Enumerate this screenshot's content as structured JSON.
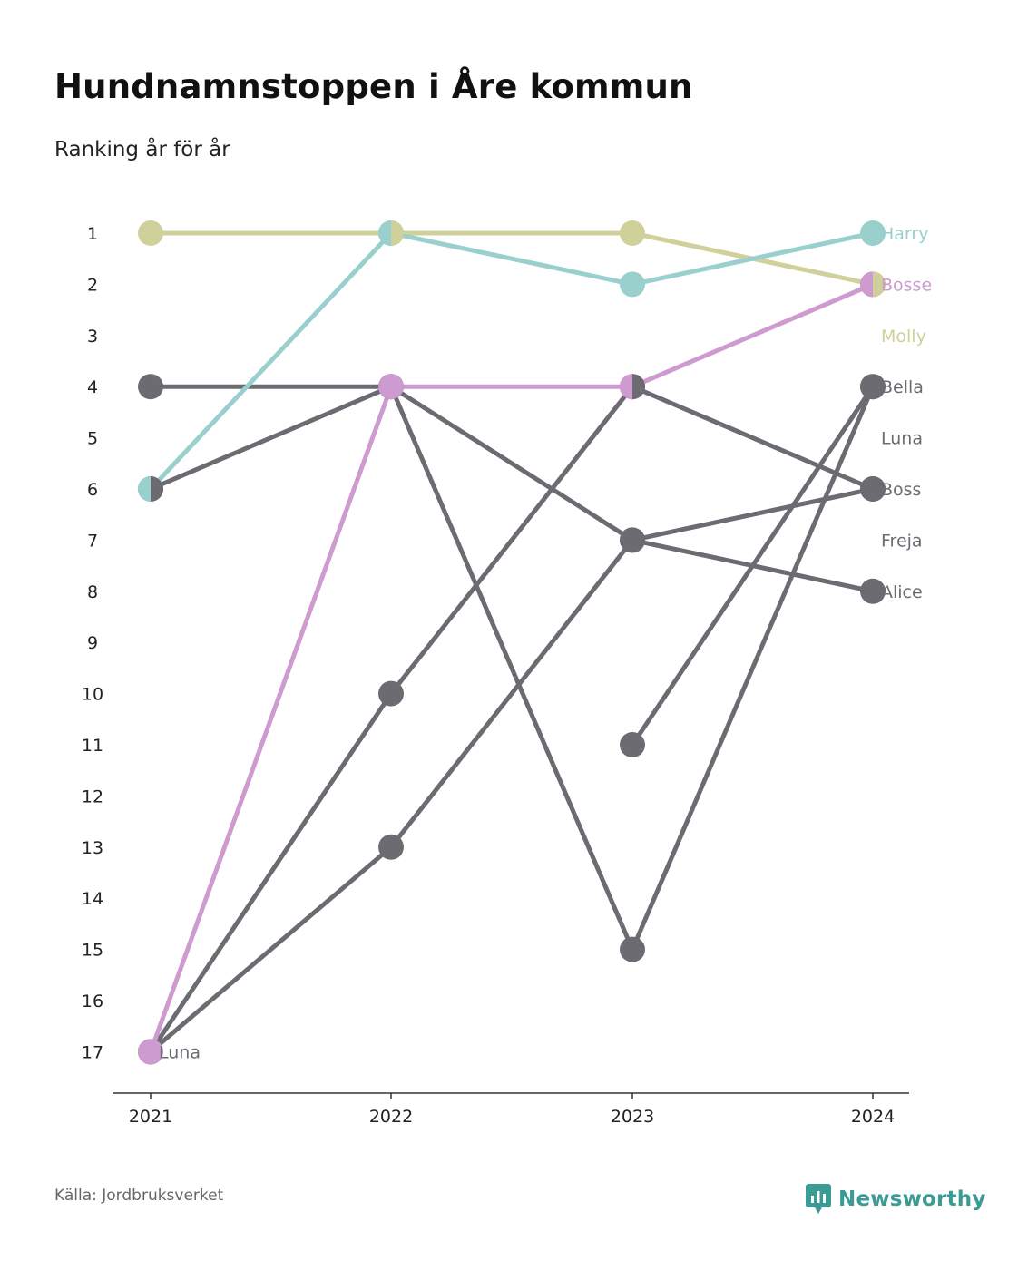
{
  "title": "Hundnamnstoppen i Åre kommun",
  "subtitle": "Ranking år för år",
  "source": "Källa: Jordbruksverket",
  "brand": "Newsworthy",
  "colors": {
    "harry": "#99cfcc",
    "bosse": "#cd9bd0",
    "molly": "#cfd09a",
    "gray": "#6c6b72",
    "axis": "#333333",
    "brand": "#3a9a94"
  },
  "chart_data": {
    "type": "line",
    "variant": "bump",
    "x": [
      2021,
      2022,
      2023,
      2024
    ],
    "y_ticks": [
      1,
      2,
      3,
      4,
      5,
      6,
      7,
      8,
      9,
      10,
      11,
      12,
      13,
      14,
      15,
      16,
      17
    ],
    "y_reversed": true,
    "ylim": [
      1,
      17
    ],
    "grid": false,
    "legend": "none",
    "series": [
      {
        "name": "Molly",
        "color": "#cfd09a",
        "values": [
          1,
          1,
          1,
          2
        ]
      },
      {
        "name": "Harry",
        "color": "#99cfcc",
        "values": [
          6,
          1,
          2,
          1
        ]
      },
      {
        "name": "Bosse",
        "color": "#cd9bd0",
        "values": [
          17,
          4,
          4,
          2
        ]
      },
      {
        "name": "Bella",
        "color": "#6c6b72",
        "values": [
          4,
          4,
          15,
          4
        ]
      },
      {
        "name": "Luna",
        "color": "#6c6b72",
        "values": [
          17,
          10,
          4,
          6
        ]
      },
      {
        "name": "Boss",
        "color": "#6c6b72",
        "values": [
          17,
          13,
          7,
          6
        ]
      },
      {
        "name": "Freja",
        "color": "#6c6b72",
        "values": [
          6,
          4,
          7,
          8
        ]
      },
      {
        "name": "Alice",
        "color": "#6c6b72",
        "values": [
          null,
          null,
          11,
          4
        ]
      }
    ],
    "end_labels": [
      {
        "text": "Harry",
        "rank": 1,
        "color": "#99cfcc"
      },
      {
        "text": "Bosse",
        "rank": 2,
        "color": "#cd9bd0"
      },
      {
        "text": "Molly",
        "rank": 3,
        "color": "#cfd09a"
      },
      {
        "text": "Bella",
        "rank": 4,
        "color": "#6c6b72"
      },
      {
        "text": "Luna",
        "rank": 5,
        "color": "#6c6b72"
      },
      {
        "text": "Boss",
        "rank": 6,
        "color": "#6c6b72"
      },
      {
        "text": "Freja",
        "rank": 7,
        "color": "#6c6b72"
      },
      {
        "text": "Alice",
        "rank": 8,
        "color": "#6c6b72"
      }
    ],
    "start_labels": [
      {
        "text": "Luna",
        "rank": 17,
        "color": "#6c6b72"
      }
    ],
    "split_markers": [
      {
        "x": 2021,
        "rank": 6,
        "left": "#99cfcc",
        "right": "#6c6b72"
      },
      {
        "x": 2022,
        "rank": 1,
        "left": "#99cfcc",
        "right": "#cfd09a"
      },
      {
        "x": 2023,
        "rank": 4,
        "left": "#cd9bd0",
        "right": "#6c6b72"
      },
      {
        "x": 2024,
        "rank": 2,
        "left": "#cd9bd0",
        "right": "#cfd09a"
      }
    ]
  }
}
